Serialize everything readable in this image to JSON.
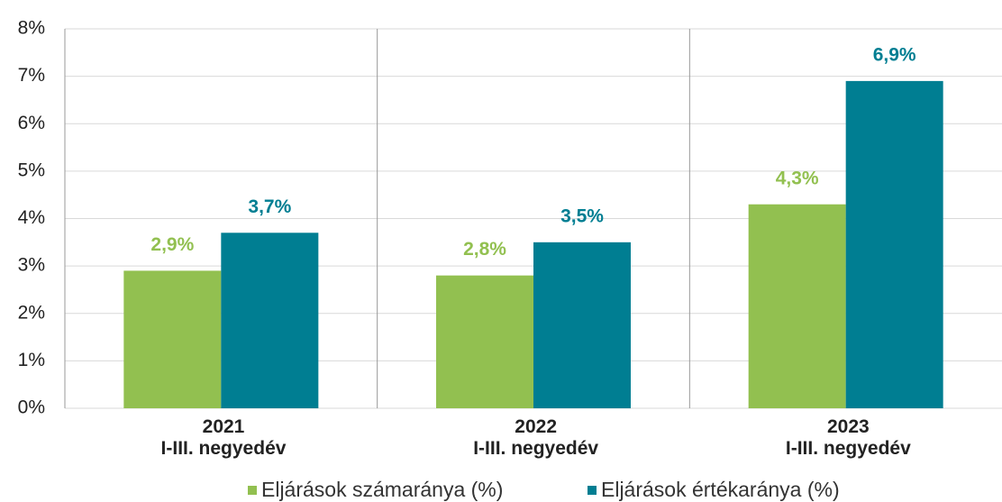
{
  "chart_data": {
    "type": "bar",
    "categories": [
      "2021\nI-III. negyedév",
      "2022\nI-III. negyedév",
      "2023\nI-III. negyedév"
    ],
    "series": [
      {
        "name": "Eljárások számaránya (%)",
        "color": "#92c050",
        "values": [
          2.9,
          2.8,
          4.3
        ],
        "value_labels": [
          "2,9%",
          "2,8%",
          "4,3%"
        ]
      },
      {
        "name": "Eljárások értékaránya (%)",
        "color": "#007e92",
        "values": [
          3.7,
          3.5,
          6.9
        ],
        "value_labels": [
          "3,7%",
          "3,5%",
          "6,9%"
        ]
      }
    ],
    "ylim": [
      0,
      8
    ],
    "yticks": [
      {
        "value": 0,
        "label": "0%"
      },
      {
        "value": 1,
        "label": "1%"
      },
      {
        "value": 2,
        "label": "2%"
      },
      {
        "value": 3,
        "label": "3%"
      },
      {
        "value": 4,
        "label": "4%"
      },
      {
        "value": 5,
        "label": "5%"
      },
      {
        "value": 6,
        "label": "6%"
      },
      {
        "value": 7,
        "label": "7%"
      },
      {
        "value": 8,
        "label": "8%"
      }
    ],
    "grid": true,
    "legend": "bottom"
  }
}
